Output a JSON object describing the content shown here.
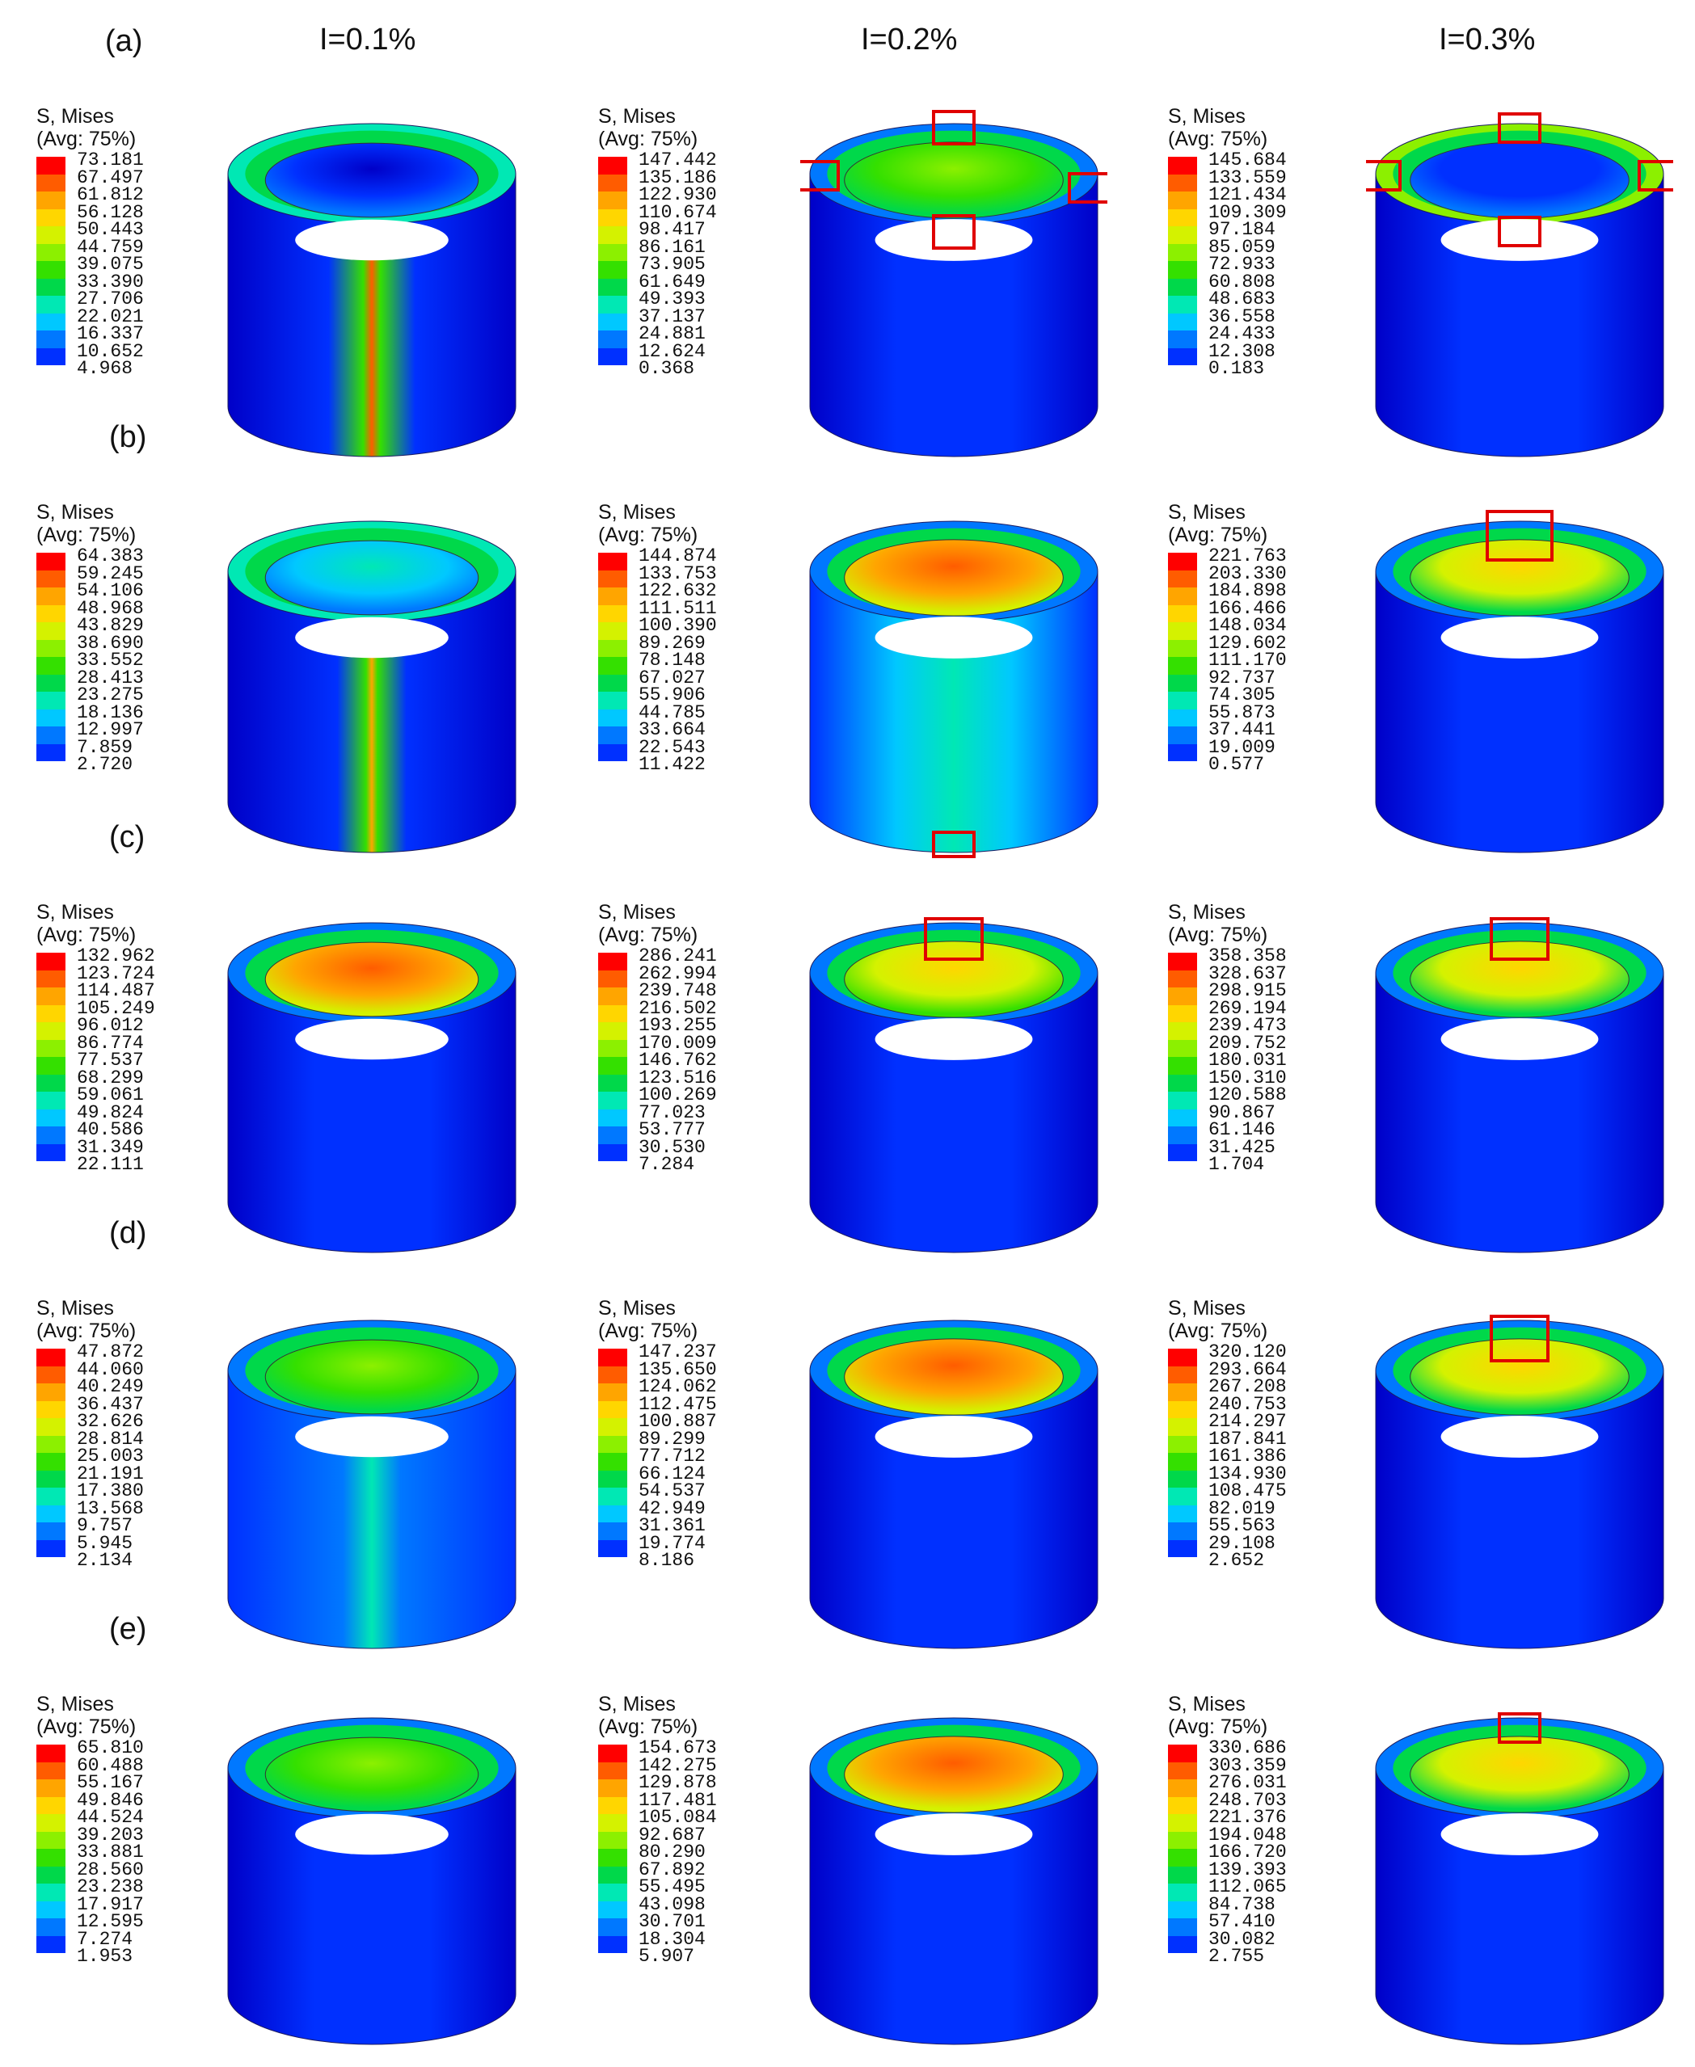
{
  "figure": {
    "column_headers": [
      "I=0.1%",
      "I=0.2%",
      "I=0.3%"
    ],
    "legend_title_line1": "S, Mises",
    "legend_title_line2": "(Avg: 75%)",
    "colormap": [
      "#ff0000",
      "#ff5c00",
      "#ffa500",
      "#ffd600",
      "#d4f200",
      "#8cf000",
      "#34e000",
      "#00d84a",
      "#00e8b4",
      "#00c8ff",
      "#0078ff",
      "#0030ff",
      "#0000c8"
    ],
    "rows": [
      {
        "label": "(a)",
        "panels": [
          {
            "values": [
              "73.181",
              "67.497",
              "61.812",
              "56.128",
              "50.443",
              "44.759",
              "39.075",
              "33.390",
              "27.706",
              "22.021",
              "16.337",
              "10.652",
              "4.968"
            ]
          },
          {
            "values": [
              "147.442",
              "135.186",
              "122.930",
              "110.674",
              "98.417",
              "86.161",
              "73.905",
              "61.649",
              "49.393",
              "37.137",
              "24.881",
              "12.624",
              "0.368"
            ]
          },
          {
            "values": [
              "145.684",
              "133.559",
              "121.434",
              "109.309",
              "97.184",
              "85.059",
              "72.933",
              "60.808",
              "48.683",
              "36.558",
              "24.433",
              "12.308",
              "0.183"
            ]
          }
        ]
      },
      {
        "label": "(b)",
        "panels": [
          {
            "values": [
              "64.383",
              "59.245",
              "54.106",
              "48.968",
              "43.829",
              "38.690",
              "33.552",
              "28.413",
              "23.275",
              "18.136",
              "12.997",
              "7.859",
              "2.720"
            ]
          },
          {
            "values": [
              "144.874",
              "133.753",
              "122.632",
              "111.511",
              "100.390",
              "89.269",
              "78.148",
              "67.027",
              "55.906",
              "44.785",
              "33.664",
              "22.543",
              "11.422"
            ]
          },
          {
            "values": [
              "221.763",
              "203.330",
              "184.898",
              "166.466",
              "148.034",
              "129.602",
              "111.170",
              "92.737",
              "74.305",
              "55.873",
              "37.441",
              "19.009",
              "0.577"
            ]
          }
        ]
      },
      {
        "label": "(c)",
        "panels": [
          {
            "values": [
              "132.962",
              "123.724",
              "114.487",
              "105.249",
              "96.012",
              "86.774",
              "77.537",
              "68.299",
              "59.061",
              "49.824",
              "40.586",
              "31.349",
              "22.111"
            ]
          },
          {
            "values": [
              "286.241",
              "262.994",
              "239.748",
              "216.502",
              "193.255",
              "170.009",
              "146.762",
              "123.516",
              "100.269",
              "77.023",
              "53.777",
              "30.530",
              "7.284"
            ]
          },
          {
            "values": [
              "358.358",
              "328.637",
              "298.915",
              "269.194",
              "239.473",
              "209.752",
              "180.031",
              "150.310",
              "120.588",
              "90.867",
              "61.146",
              "31.425",
              "1.704"
            ]
          }
        ]
      },
      {
        "label": "(d)",
        "panels": [
          {
            "values": [
              "47.872",
              "44.060",
              "40.249",
              "36.437",
              "32.626",
              "28.814",
              "25.003",
              "21.191",
              "17.380",
              "13.568",
              "9.757",
              "5.945",
              "2.134"
            ]
          },
          {
            "values": [
              "147.237",
              "135.650",
              "124.062",
              "112.475",
              "100.887",
              "89.299",
              "77.712",
              "66.124",
              "54.537",
              "42.949",
              "31.361",
              "19.774",
              "8.186"
            ]
          },
          {
            "values": [
              "320.120",
              "293.664",
              "267.208",
              "240.753",
              "214.297",
              "187.841",
              "161.386",
              "134.930",
              "108.475",
              "82.019",
              "55.563",
              "29.108",
              "2.652"
            ]
          }
        ]
      },
      {
        "label": "(e)",
        "panels": [
          {
            "values": [
              "65.810",
              "60.488",
              "55.167",
              "49.846",
              "44.524",
              "39.203",
              "33.881",
              "28.560",
              "23.238",
              "17.917",
              "12.595",
              "7.274",
              "1.953"
            ]
          },
          {
            "values": [
              "154.673",
              "142.275",
              "129.878",
              "117.481",
              "105.084",
              "92.687",
              "80.290",
              "67.892",
              "55.495",
              "43.098",
              "30.701",
              "18.304",
              "5.907"
            ]
          },
          {
            "values": [
              "330.686",
              "303.359",
              "276.031",
              "248.703",
              "221.376",
              "194.048",
              "166.720",
              "139.393",
              "112.065",
              "84.738",
              "57.410",
              "30.082",
              "2.755"
            ]
          }
        ]
      }
    ]
  }
}
